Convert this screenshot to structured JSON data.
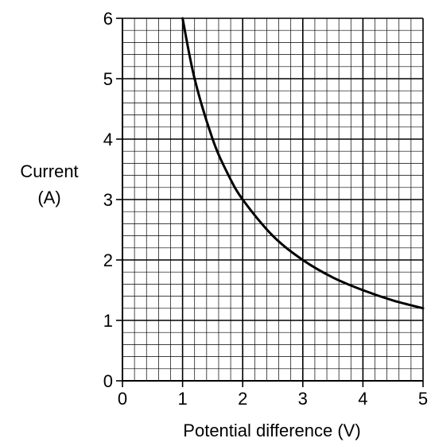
{
  "chart_data": {
    "type": "line",
    "xlabel": "Potential difference (V)",
    "ylabel_lines": [
      "Current",
      "(A)"
    ],
    "xlim": [
      0,
      5
    ],
    "ylim": [
      0,
      6
    ],
    "x_ticks": [
      "0",
      "1",
      "2",
      "3",
      "4",
      "5"
    ],
    "y_ticks": [
      "0",
      "1",
      "2",
      "3",
      "4",
      "5",
      "6"
    ],
    "grid": "on",
    "minor_per_major": 5,
    "series": [
      {
        "x": [
          1.0,
          1.2,
          1.5,
          1.75,
          2.0,
          2.5,
          3.0,
          3.5,
          4.0,
          4.5,
          5.0
        ],
        "y": [
          6.0,
          5.0,
          4.0,
          3.43,
          3.0,
          2.4,
          2.0,
          1.71,
          1.5,
          1.33,
          1.2
        ]
      }
    ],
    "colors": {
      "grid": "#000000",
      "curve": "#000000"
    }
  }
}
